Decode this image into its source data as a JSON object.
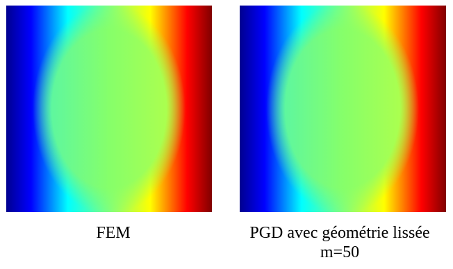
{
  "panels": [
    {
      "caption": "FEM"
    },
    {
      "caption": "PGD avec géométrie lissée\nm=50"
    }
  ],
  "colormap": {
    "name": "jet",
    "stops": [
      "#00008f",
      "#0000ff",
      "#00ffff",
      "#7fff7f",
      "#ffff00",
      "#ff0000",
      "#800000"
    ]
  }
}
